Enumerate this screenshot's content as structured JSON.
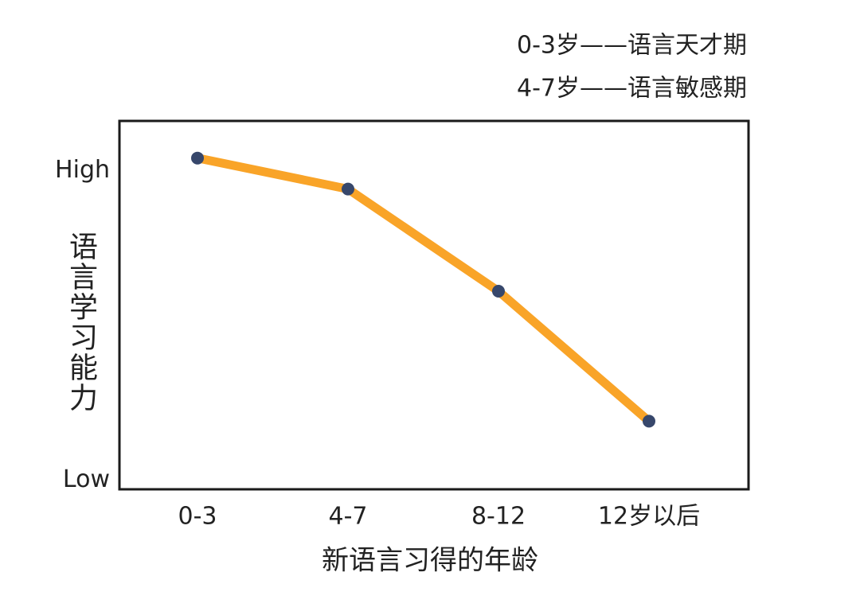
{
  "chart_data": {
    "type": "line",
    "annotations": [
      "0-3岁——语言天才期",
      "4-7岁——语言敏感期"
    ],
    "x_label": "新语言习得的年龄",
    "y_label": "语言学习能力",
    "categories": [
      "0-3",
      "4-7",
      "8-12",
      "12岁以后"
    ],
    "values": [
      104,
      94,
      61,
      19
    ],
    "color": "#f9a428",
    "marker_color": "#37476b",
    "ylim": [
      -3,
      116
    ],
    "yticks": [
      {
        "value": 100,
        "label": "High"
      },
      {
        "value": 0,
        "label": "Low"
      }
    ]
  }
}
